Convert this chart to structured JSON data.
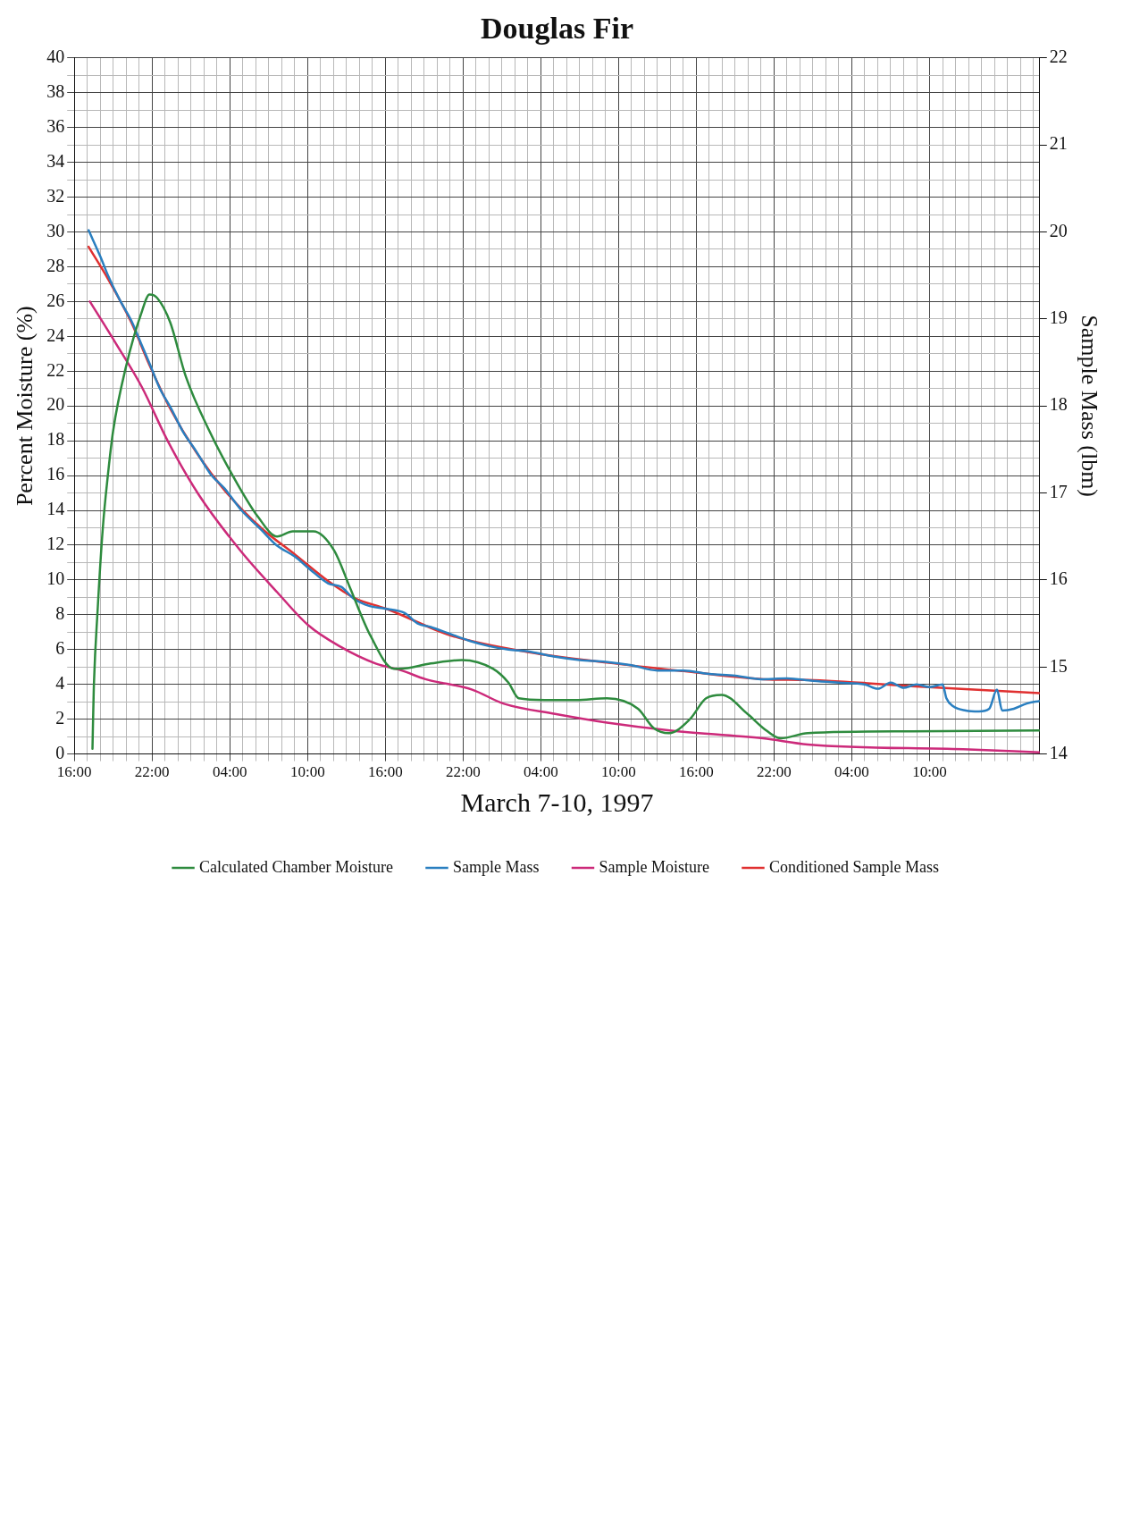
{
  "chart_data": {
    "type": "line",
    "title": "Douglas Fir",
    "xlabel": "March 7-10, 1997",
    "ylabel": "Percent Moisture (%)",
    "y2label": "Sample Mass (lbm)",
    "xlim": [
      "1997-03-07T16:00",
      "1997-03-10T18:30"
    ],
    "xticks": [
      {
        "value": "1997-03-07T16:00",
        "label": "16:00"
      },
      {
        "value": "1997-03-07T17:00",
        "label": null
      },
      {
        "value": "1997-03-07T18:00",
        "label": null
      },
      {
        "value": "1997-03-07T19:00",
        "label": null
      },
      {
        "value": "1997-03-07T20:00",
        "label": null
      },
      {
        "value": "1997-03-07T21:00",
        "label": null
      },
      {
        "value": "1997-03-07T22:00",
        "label": "22:00"
      },
      {
        "value": "1997-03-07T23:00",
        "label": null
      },
      {
        "value": "1997-03-08T00:00",
        "label": null
      },
      {
        "value": "1997-03-08T01:00",
        "label": null
      },
      {
        "value": "1997-03-08T02:00",
        "label": null
      },
      {
        "value": "1997-03-08T03:00",
        "label": null
      },
      {
        "value": "1997-03-08T04:00",
        "label": "04:00"
      },
      {
        "value": "1997-03-08T05:00",
        "label": null
      },
      {
        "value": "1997-03-08T06:00",
        "label": null
      },
      {
        "value": "1997-03-08T07:00",
        "label": null
      },
      {
        "value": "1997-03-08T08:00",
        "label": null
      },
      {
        "value": "1997-03-08T09:00",
        "label": null
      },
      {
        "value": "1997-03-08T10:00",
        "label": "10:00"
      },
      {
        "value": "1997-03-08T11:00",
        "label": null
      },
      {
        "value": "1997-03-08T12:00",
        "label": null
      },
      {
        "value": "1997-03-08T13:00",
        "label": null
      },
      {
        "value": "1997-03-08T14:00",
        "label": null
      },
      {
        "value": "1997-03-08T15:00",
        "label": null
      },
      {
        "value": "1997-03-08T16:00",
        "label": "16:00"
      },
      {
        "value": "1997-03-08T17:00",
        "label": null
      },
      {
        "value": "1997-03-08T18:00",
        "label": null
      },
      {
        "value": "1997-03-08T19:00",
        "label": null
      },
      {
        "value": "1997-03-08T20:00",
        "label": null
      },
      {
        "value": "1997-03-08T21:00",
        "label": null
      },
      {
        "value": "1997-03-08T22:00",
        "label": "22:00"
      },
      {
        "value": "1997-03-08T23:00",
        "label": null
      },
      {
        "value": "1997-03-09T00:00",
        "label": null
      },
      {
        "value": "1997-03-09T01:00",
        "label": null
      },
      {
        "value": "1997-03-09T02:00",
        "label": null
      },
      {
        "value": "1997-03-09T03:00",
        "label": null
      },
      {
        "value": "1997-03-09T04:00",
        "label": "04:00"
      },
      {
        "value": "1997-03-09T05:00",
        "label": null
      },
      {
        "value": "1997-03-09T06:00",
        "label": null
      },
      {
        "value": "1997-03-09T07:00",
        "label": null
      },
      {
        "value": "1997-03-09T08:00",
        "label": null
      },
      {
        "value": "1997-03-09T09:00",
        "label": null
      },
      {
        "value": "1997-03-09T10:00",
        "label": "10:00"
      },
      {
        "value": "1997-03-09T11:00",
        "label": null
      },
      {
        "value": "1997-03-09T12:00",
        "label": null
      },
      {
        "value": "1997-03-09T13:00",
        "label": null
      },
      {
        "value": "1997-03-09T14:00",
        "label": null
      },
      {
        "value": "1997-03-09T15:00",
        "label": null
      },
      {
        "value": "1997-03-09T16:00",
        "label": "16:00"
      },
      {
        "value": "1997-03-09T17:00",
        "label": null
      },
      {
        "value": "1997-03-09T18:00",
        "label": null
      },
      {
        "value": "1997-03-09T19:00",
        "label": null
      },
      {
        "value": "1997-03-09T20:00",
        "label": null
      },
      {
        "value": "1997-03-09T21:00",
        "label": null
      },
      {
        "value": "1997-03-09T22:00",
        "label": "22:00"
      },
      {
        "value": "1997-03-09T23:00",
        "label": null
      },
      {
        "value": "1997-03-10T00:00",
        "label": null
      },
      {
        "value": "1997-03-10T01:00",
        "label": null
      },
      {
        "value": "1997-03-10T02:00",
        "label": null
      },
      {
        "value": "1997-03-10T03:00",
        "label": null
      },
      {
        "value": "1997-03-10T04:00",
        "label": "04:00"
      },
      {
        "value": "1997-03-10T05:00",
        "label": null
      },
      {
        "value": "1997-03-10T06:00",
        "label": null
      },
      {
        "value": "1997-03-10T07:00",
        "label": null
      },
      {
        "value": "1997-03-10T08:00",
        "label": null
      },
      {
        "value": "1997-03-10T09:00",
        "label": null
      },
      {
        "value": "1997-03-10T10:00",
        "label": "10:00"
      },
      {
        "value": "1997-03-10T11:00",
        "label": null
      },
      {
        "value": "1997-03-10T12:00",
        "label": null
      },
      {
        "value": "1997-03-10T13:00",
        "label": null
      },
      {
        "value": "1997-03-10T14:00",
        "label": null
      },
      {
        "value": "1997-03-10T15:00",
        "label": null
      },
      {
        "value": "1997-03-10T16:00",
        "label": null
      },
      {
        "value": "1997-03-10T17:00",
        "label": null
      },
      {
        "value": "1997-03-10T18:00",
        "label": null
      }
    ],
    "ylim": [
      0,
      40
    ],
    "yticks": [
      0,
      {
        "value": 1,
        "label": null
      },
      2,
      {
        "value": 3,
        "label": null
      },
      4,
      {
        "value": 5,
        "label": null
      },
      6,
      {
        "value": 7,
        "label": null
      },
      8,
      {
        "value": 9,
        "label": null
      },
      10,
      {
        "value": 11,
        "label": null
      },
      12,
      {
        "value": 13,
        "label": null
      },
      14,
      {
        "value": 15,
        "label": null
      },
      16,
      {
        "value": 17,
        "label": null
      },
      18,
      {
        "value": 19,
        "label": null
      },
      20,
      {
        "value": 21,
        "label": null
      },
      22,
      {
        "value": 23,
        "label": null
      },
      24,
      {
        "value": 25,
        "label": null
      },
      26,
      {
        "value": 27,
        "label": null
      },
      28,
      {
        "value": 29,
        "label": null
      },
      30,
      {
        "value": 31,
        "label": null
      },
      32,
      {
        "value": 33,
        "label": null
      },
      34,
      {
        "value": 35,
        "label": null
      },
      36,
      {
        "value": 37,
        "label": null
      },
      38,
      {
        "value": 39,
        "label": null
      },
      40
    ],
    "y2lim": [
      14,
      22
    ],
    "y2ticks": [
      14,
      15,
      16,
      17,
      18,
      19,
      20,
      21,
      22
    ],
    "grid": true,
    "legend": "bottom",
    "marker": "none",
    "line_style": "solid",
    "series": [
      {
        "name": "Calculated Chamber Moisture",
        "color": "#2e8b3e",
        "axis": "y",
        "x": [
          "1997-03-07T17:24",
          "1997-03-07T17:30",
          "1997-03-07T17:48",
          "1997-03-07T18:12",
          "1997-03-07T18:36",
          "1997-03-07T19:00",
          "1997-03-07T20:00",
          "1997-03-07T21:12",
          "1997-03-07T21:48",
          "1997-03-07T22:24",
          "1997-03-07T23:24",
          "1997-03-08T00:36",
          "1997-03-08T02:24",
          "1997-03-08T04:36",
          "1997-03-08T06:12",
          "1997-03-08T07:39",
          "1997-03-08T08:51",
          "1997-03-08T10:27",
          "1997-03-08T12:03",
          "1997-03-08T13:15",
          "1997-03-08T14:51",
          "1997-03-08T16:39",
          "1997-03-08T17:06",
          "1997-03-08T19:30",
          "1997-03-08T21:54",
          "1997-03-09T00:18",
          "1997-03-09T01:30",
          "1997-03-09T02:18",
          "1997-03-09T04:18",
          "1997-03-09T06:42",
          "1997-03-09T09:06",
          "1997-03-09T11:30",
          "1997-03-09T12:42",
          "1997-03-09T13:54",
          "1997-03-09T15:30",
          "1997-03-09T16:45",
          "1997-03-09T17:57",
          "1997-03-09T19:57",
          "1997-03-09T21:09",
          "1997-03-09T22:30",
          "1997-03-10T00:36",
          "1997-03-10T08:36",
          "1997-03-10T18:30"
        ],
        "values": [
          0.3,
          3.7,
          8.3,
          13.0,
          16.1,
          18.6,
          22.3,
          25.4,
          26.4,
          26.2,
          24.8,
          21.7,
          18.6,
          15.5,
          13.6,
          12.5,
          12.8,
          12.8,
          11.7,
          9.6,
          6.8,
          4.9,
          4.9,
          5.2,
          5.4,
          4.9,
          4.1,
          3.2,
          3.1,
          3.1,
          3.2,
          2.6,
          1.5,
          1.2,
          2.0,
          3.2,
          3.4,
          2.3,
          1.5,
          0.9,
          1.2,
          1.3,
          1.35
        ]
      },
      {
        "name": "Sample Mass",
        "color": "#2a7fc0",
        "axis": "y2",
        "x": [
          "1997-03-07T17:06",
          "1997-03-07T18:00",
          "1997-03-07T18:36",
          "1997-03-07T19:30",
          "1997-03-07T20:24",
          "1997-03-07T21:12",
          "1997-03-07T21:48",
          "1997-03-07T22:36",
          "1997-03-07T23:24",
          "1997-03-08T00:24",
          "1997-03-08T01:24",
          "1997-03-08T02:30",
          "1997-03-08T03:36",
          "1997-03-08T04:54",
          "1997-03-08T06:24",
          "1997-03-08T07:36",
          "1997-03-08T09:00",
          "1997-03-08T10:12",
          "1997-03-08T11:36",
          "1997-03-08T12:36",
          "1997-03-08T13:36",
          "1997-03-08T14:48",
          "1997-03-08T16:00",
          "1997-03-08T17:30",
          "1997-03-08T18:30",
          "1997-03-08T19:30",
          "1997-03-08T21:00",
          "1997-03-08T22:30",
          "1997-03-09T00:00",
          "1997-03-09T01:30",
          "1997-03-09T03:00",
          "1997-03-09T05:00",
          "1997-03-09T07:00",
          "1997-03-09T09:00",
          "1997-03-09T11:00",
          "1997-03-09T13:00",
          "1997-03-09T15:00",
          "1997-03-09T17:00",
          "1997-03-09T19:00",
          "1997-03-09T21:00",
          "1997-03-09T23:00",
          "1997-03-10T01:00",
          "1997-03-10T03:00",
          "1997-03-10T05:00",
          "1997-03-10T06:00",
          "1997-03-10T07:00",
          "1997-03-10T08:00",
          "1997-03-10T09:00",
          "1997-03-10T10:00",
          "1997-03-10T11:00",
          "1997-03-10T11:18",
          "1997-03-10T11:48",
          "1997-03-10T12:48",
          "1997-03-10T13:48",
          "1997-03-10T14:36",
          "1997-03-10T15:12",
          "1997-03-10T15:36",
          "1997-03-10T16:30",
          "1997-03-10T17:30",
          "1997-03-10T18:30"
        ],
        "values": [
          20.02,
          19.72,
          19.5,
          19.22,
          18.98,
          18.7,
          18.49,
          18.2,
          17.99,
          17.7,
          17.48,
          17.22,
          17.05,
          16.8,
          16.58,
          16.4,
          16.27,
          16.12,
          15.96,
          15.92,
          15.78,
          15.7,
          15.67,
          15.62,
          15.5,
          15.46,
          15.38,
          15.3,
          15.24,
          15.2,
          15.18,
          15.12,
          15.08,
          15.06,
          15.02,
          14.96,
          14.96,
          14.92,
          14.9,
          14.86,
          14.87,
          14.84,
          14.82,
          14.8,
          14.75,
          14.82,
          14.76,
          14.8,
          14.77,
          14.8,
          14.64,
          14.55,
          14.5,
          14.49,
          14.52,
          14.74,
          14.5,
          14.52,
          14.58,
          14.61
        ]
      },
      {
        "name": "Sample Moisture",
        "color": "#cc2a7a",
        "axis": "y",
        "x": [
          "1997-03-07T17:12",
          "1997-03-07T19:12",
          "1997-03-07T21:12",
          "1997-03-07T23:12",
          "1997-03-08T01:36",
          "1997-03-08T04:48",
          "1997-03-08T07:39",
          "1997-03-08T10:03",
          "1997-03-08T12:27",
          "1997-03-08T15:15",
          "1997-03-08T17:15",
          "1997-03-08T19:06",
          "1997-03-08T22:42",
          "1997-03-09T01:06",
          "1997-03-09T05:06",
          "1997-03-09T09:06",
          "1997-03-09T13:57",
          "1997-03-09T21:09",
          "1997-03-10T00:36",
          "1997-03-10T12:36",
          "1997-03-10T18:30"
        ],
        "values": [
          26.0,
          23.6,
          21.1,
          18.0,
          14.9,
          11.7,
          9.3,
          7.4,
          6.2,
          5.2,
          4.8,
          4.3,
          3.7,
          2.9,
          2.3,
          1.8,
          1.35,
          0.9,
          0.55,
          0.27,
          0.1
        ]
      },
      {
        "name": "Conditioned Sample Mass",
        "color": "#e03030",
        "axis": "y2",
        "x": [
          "1997-03-07T17:06",
          "1997-03-07T18:36",
          "1997-03-07T20:24",
          "1997-03-07T21:48",
          "1997-03-07T23:24",
          "1997-03-08T01:24",
          "1997-03-08T03:36",
          "1997-03-08T06:24",
          "1997-03-08T09:03",
          "1997-03-08T11:39",
          "1997-03-08T13:39",
          "1997-03-08T16:03",
          "1997-03-08T21:06",
          "1997-03-09T03:06",
          "1997-03-09T09:06",
          "1997-03-09T15:09",
          "1997-03-09T21:09",
          "1997-03-10T00:36",
          "1997-03-10T08:36",
          "1997-03-10T18:30"
        ],
        "values": [
          19.83,
          19.46,
          18.96,
          18.47,
          17.97,
          17.47,
          17.03,
          16.6,
          16.29,
          15.98,
          15.79,
          15.67,
          15.36,
          15.17,
          15.05,
          14.95,
          14.86,
          14.85,
          14.78,
          14.7
        ]
      }
    ]
  }
}
